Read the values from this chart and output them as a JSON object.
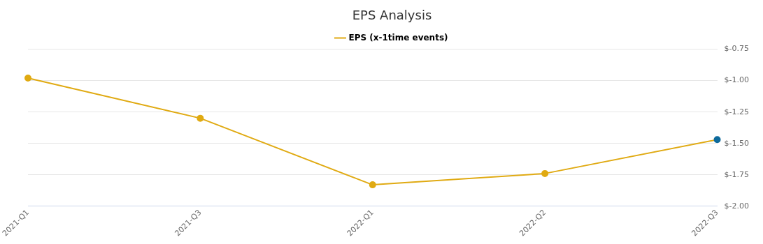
{
  "chart_data": {
    "type": "line",
    "title": "EPS Analysis",
    "categories": [
      "2021-Q1",
      "2021-Q3",
      "2022-Q1",
      "2022-Q2",
      "2022-Q3"
    ],
    "series": [
      {
        "name": "EPS (x-1time events)",
        "color": "#e0aa12",
        "colors": [
          "#e0aa12",
          "#e0aa12",
          "#e0aa12",
          "#e0aa12",
          "#0e6a9c"
        ],
        "values": [
          -0.98,
          -1.3,
          -1.83,
          -1.74,
          -1.47
        ]
      }
    ],
    "ylim": [
      -2,
      -0.75
    ],
    "yticks": [
      {
        "value": -2,
        "label": "$-2.00"
      },
      {
        "value": -1.75,
        "label": "$-1.75"
      },
      {
        "value": -1.5,
        "label": "$-1.50"
      },
      {
        "value": -1.25,
        "label": "$-1.25"
      },
      {
        "value": -1,
        "label": "$-1.00"
      },
      {
        "value": -0.75,
        "label": "$-0.75"
      }
    ],
    "grid": "y",
    "legend": "top",
    "marker": "circle",
    "line_style": "solid"
  }
}
